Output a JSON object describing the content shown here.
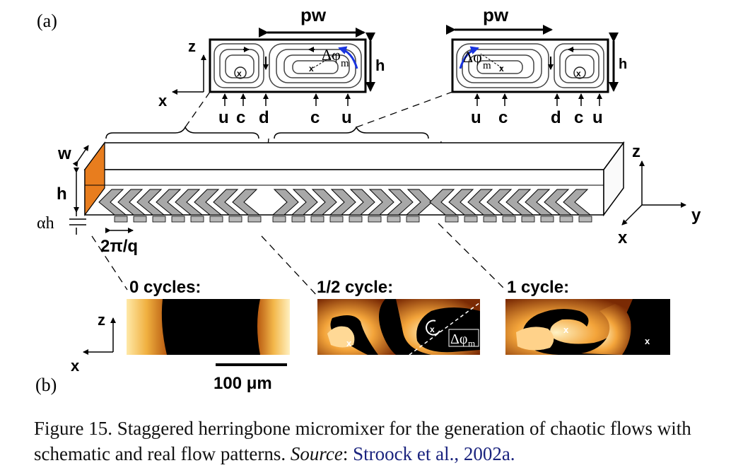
{
  "panel_a_label": "(a)",
  "panel_b_label": "(b)",
  "cross_sections": {
    "left": {
      "pw": "pw",
      "h": "h",
      "dphi": "Δφ",
      "dphi_sub": "m",
      "axis_z": "z",
      "axis_x": "x",
      "markers": [
        "u",
        "c",
        "d",
        "c",
        "u"
      ]
    },
    "right": {
      "pw": "pw",
      "h": "h",
      "dphi": "Δφ",
      "dphi_sub": "m",
      "markers": [
        "u",
        "c",
        "d",
        "c",
        "u"
      ]
    }
  },
  "channel": {
    "w": "w",
    "h": "h",
    "alpha_h": "αh",
    "period": "2π/q",
    "axis_z": "z",
    "axis_y": "y",
    "axis_x": "x"
  },
  "images": {
    "label_0": "0 cycles:",
    "label_half": "1/2 cycle:",
    "label_1": "1 cycle:",
    "dphi": "Δφ",
    "dphi_sub": "m",
    "axis_z": "z",
    "axis_x": "x",
    "scale_bar": "100 μm"
  },
  "colors": {
    "fluid_dark": "#000000",
    "fluid_bright": "#ffd070",
    "fluid_mid": "#c86a10",
    "arrow_blue": "#1a35e0",
    "side_orange": "#e87d1e",
    "link_blue": "#1a237e"
  },
  "caption": {
    "text": "Figure 15. Staggered herringbone micromixer for the generation of chaotic flows with schematic and real flow patterns. ",
    "source_label": "Source",
    "source_sep": ": ",
    "source_link": "Stroock et al., 2002a."
  }
}
